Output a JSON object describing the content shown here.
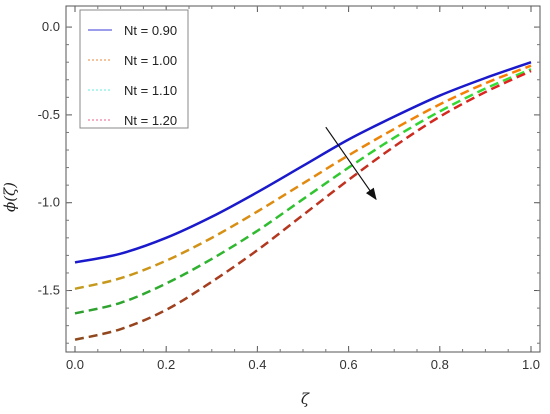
{
  "chart_data": {
    "type": "line",
    "title": "",
    "xlabel": "ζ",
    "ylabel": "ϕ(ζ)",
    "xlim": [
      0,
      1.0
    ],
    "ylim": [
      -1.85,
      0.12
    ],
    "xticks": [
      "0.0",
      "0.2",
      "0.4",
      "0.6",
      "0.8",
      "1.0"
    ],
    "yticks": [
      "0.0",
      "-0.5",
      "-1.0",
      "-1.5"
    ],
    "xtick_values": [
      0,
      0.2,
      0.4,
      0.6,
      0.8,
      1.0
    ],
    "ytick_values": [
      0,
      -0.5,
      -1.0,
      -1.5
    ],
    "grid": false,
    "legend_position": "top-left",
    "x": [
      0.0,
      0.1,
      0.2,
      0.3,
      0.4,
      0.5,
      0.6,
      0.7,
      0.8,
      0.9,
      1.0
    ],
    "series": [
      {
        "name": "Nt = 0.90",
        "color": "#1a1acc",
        "dash": "solid",
        "values": [
          -1.34,
          -1.29,
          -1.2,
          -1.08,
          -0.94,
          -0.79,
          -0.64,
          -0.51,
          -0.39,
          -0.29,
          -0.2
        ]
      },
      {
        "name": "Nt = 1.00",
        "color_start": "#c29a1e",
        "color_end": "#ff7a00",
        "dash": "dashed",
        "values": [
          -1.49,
          -1.43,
          -1.33,
          -1.2,
          -1.05,
          -0.89,
          -0.73,
          -0.58,
          -0.44,
          -0.32,
          -0.22
        ]
      },
      {
        "name": "Nt = 1.10",
        "color_start": "#2e9e2e",
        "color_end": "#33e633",
        "dash": "dashed",
        "values": [
          -1.63,
          -1.57,
          -1.46,
          -1.32,
          -1.16,
          -0.98,
          -0.8,
          -0.63,
          -0.48,
          -0.35,
          -0.24
        ]
      },
      {
        "name": "Nt = 1.20",
        "color_start": "#8b4a1e",
        "color_end": "#e62020",
        "dash": "dashed",
        "values": [
          -1.78,
          -1.72,
          -1.61,
          -1.45,
          -1.27,
          -1.07,
          -0.87,
          -0.68,
          -0.51,
          -0.37,
          -0.25
        ]
      }
    ],
    "legend_colors": [
      "#6060e0",
      "#f0a060",
      "#80f0e0",
      "#f080a0"
    ],
    "annotation_arrow": {
      "from": [
        0.55,
        -0.57
      ],
      "to": [
        0.66,
        -0.98
      ]
    }
  }
}
